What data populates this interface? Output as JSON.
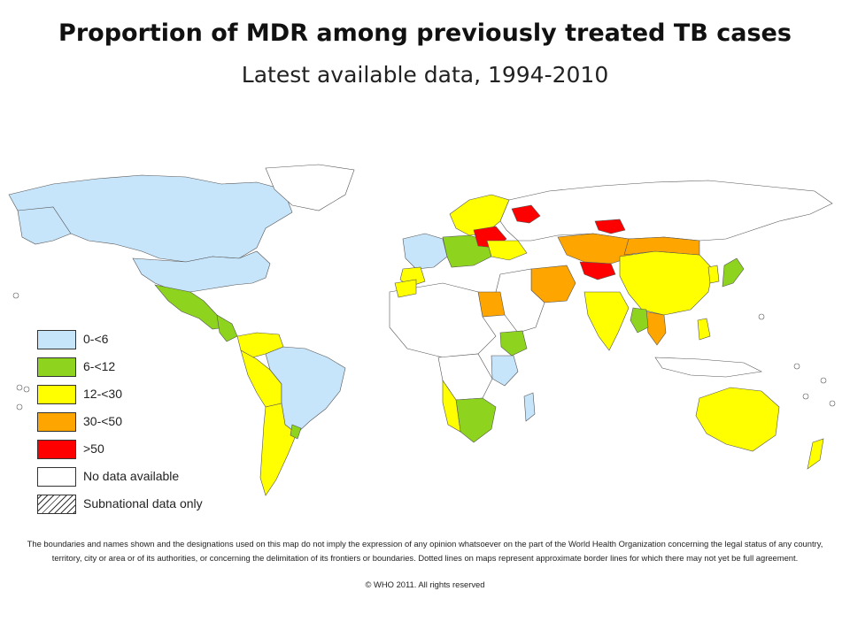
{
  "title": "Proportion of MDR among previously treated TB cases",
  "subtitle": "Latest available data, 1994-2010",
  "colors": {
    "c0": "#c6e4fa",
    "c1": "#8ed41e",
    "c2": "#ffff00",
    "c3": "#ffa500",
    "c4": "#ff0000",
    "none": "#ffffff",
    "border": "#333333"
  },
  "legend": [
    {
      "label": "0-<6",
      "color": "#c6e4fa"
    },
    {
      "label": "6-<12",
      "color": "#8ed41e"
    },
    {
      "label": "12-<30",
      "color": "#ffff00"
    },
    {
      "label": "30-<50",
      "color": "#ffa500"
    },
    {
      "label": ">50",
      "color": "#ff0000"
    },
    {
      "label": "No data available",
      "color": "#ffffff"
    },
    {
      "label": "Subnational data only",
      "color": "hatch"
    }
  ],
  "disclaimer": "The boundaries and names shown and the designations used on this map do not imply the expression of any opinion whatsoever on the part of the World Health Organization concerning the legal status of any country, territory, city or area or of its authorities, or concerning the delimitation of its frontiers or boundaries. Dotted lines on maps represent approximate border lines for which there may not yet be full agreement.",
  "copyright": "© WHO 2011. All rights reserved"
}
